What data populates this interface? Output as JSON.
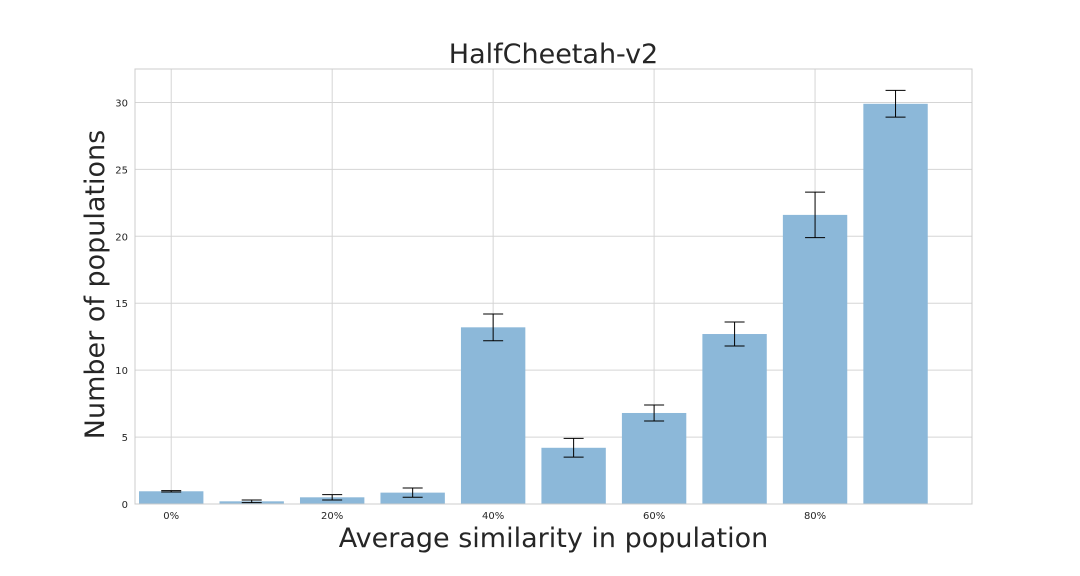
{
  "chart_data": {
    "type": "bar",
    "title": "HalfCheetah-v2",
    "xlabel": "Average similarity in population",
    "ylabel": "Number of populations",
    "x": [
      0,
      10,
      20,
      30,
      40,
      50,
      60,
      70,
      80,
      90
    ],
    "values": [
      0.95,
      0.2,
      0.5,
      0.85,
      13.2,
      4.2,
      6.8,
      12.7,
      21.6,
      29.9
    ],
    "errors": [
      0.05,
      0.1,
      0.2,
      0.35,
      1.0,
      0.7,
      0.6,
      0.9,
      1.7,
      1.0
    ],
    "bar_color": "#8cb8d9",
    "xlim": [
      -4.5,
      99.5
    ],
    "ylim": [
      0,
      32.5
    ],
    "x_ticks": [
      0,
      20,
      40,
      60,
      80
    ],
    "x_tick_labels": [
      "0%",
      "20%",
      "40%",
      "60%",
      "80%"
    ],
    "y_ticks": [
      0,
      5,
      10,
      15,
      20,
      25,
      30
    ],
    "y_tick_labels": [
      "0",
      "5",
      "10",
      "15",
      "20",
      "25",
      "30"
    ],
    "grid": true
  }
}
